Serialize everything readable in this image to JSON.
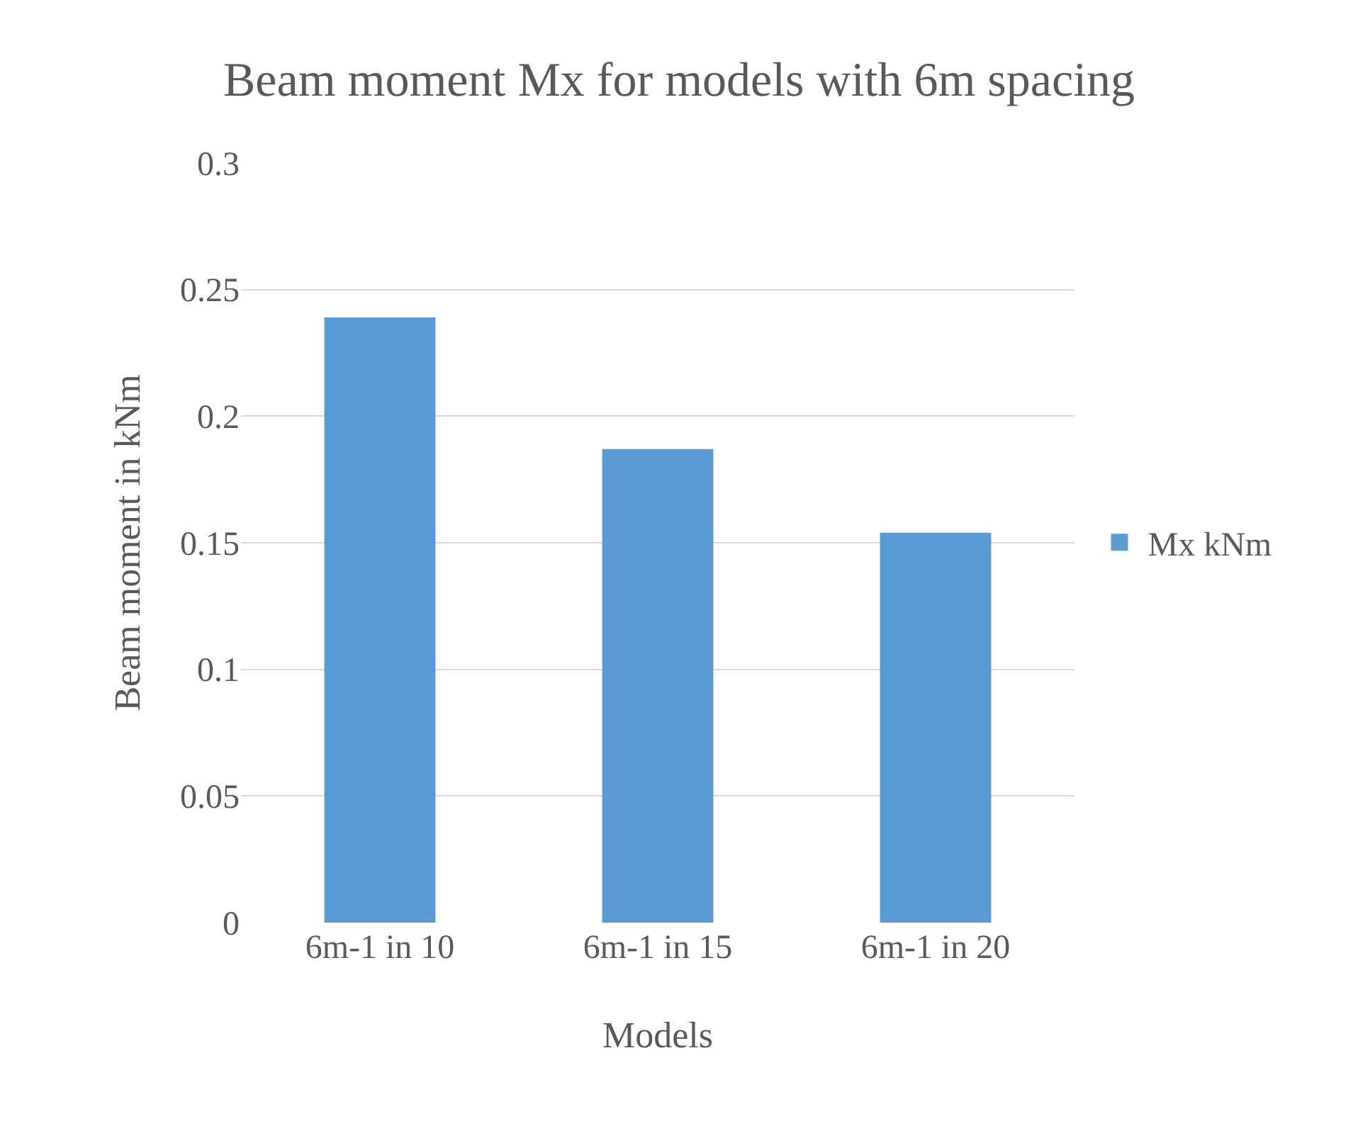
{
  "chart_data": {
    "type": "bar",
    "title": "Beam moment Mx for models with 6m spacing",
    "xlabel": "Models",
    "ylabel": "Beam moment in kNm",
    "categories": [
      "6m-1 in 10",
      "6m-1 in 15",
      "6m-1 in 20"
    ],
    "series": [
      {
        "name": "Mx kNm",
        "color": "#5b9bd5",
        "values": [
          0.239,
          0.187,
          0.154
        ]
      }
    ],
    "ylim": [
      0,
      0.3
    ],
    "yticks": [
      0,
      0.05,
      0.1,
      0.15,
      0.2,
      0.25,
      0.3
    ],
    "grid": "y",
    "legend": "right"
  }
}
